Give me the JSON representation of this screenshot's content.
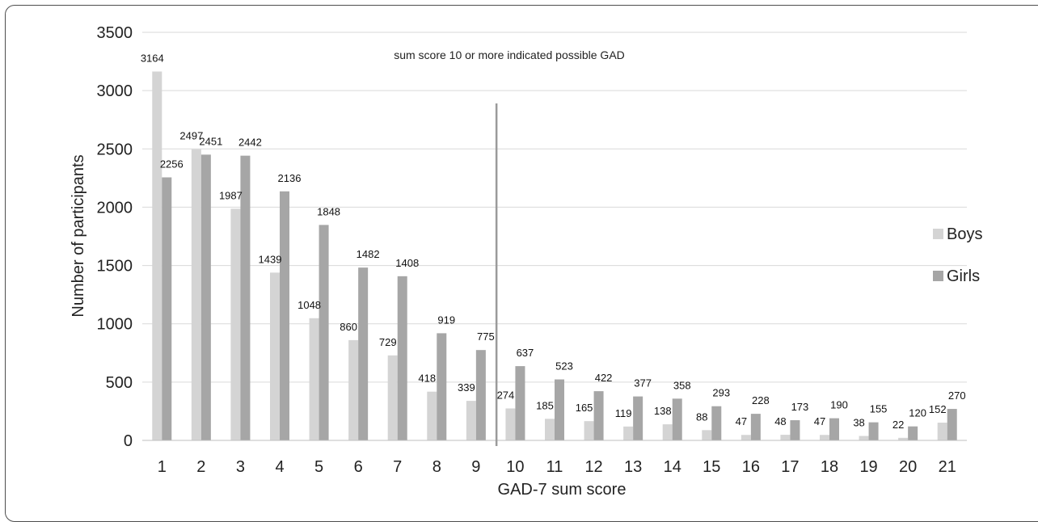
{
  "chart_data": {
    "type": "bar",
    "xlabel": "GAD-7 sum score",
    "ylabel": "Number of participants",
    "categories": [
      "1",
      "2",
      "3",
      "4",
      "5",
      "6",
      "7",
      "8",
      "9",
      "10",
      "11",
      "12",
      "13",
      "14",
      "15",
      "16",
      "17",
      "18",
      "19",
      "20",
      "21"
    ],
    "series": [
      {
        "name": "Boys",
        "color": "#d4d4d4",
        "values": [
          3164,
          2497,
          1987,
          1439,
          1048,
          860,
          729,
          418,
          339,
          274,
          185,
          165,
          119,
          138,
          88,
          47,
          48,
          47,
          38,
          22,
          152
        ]
      },
      {
        "name": "Girls",
        "color": "#a6a6a6",
        "values": [
          2256,
          2451,
          2442,
          2136,
          1848,
          1482,
          1408,
          919,
          775,
          637,
          523,
          422,
          377,
          358,
          293,
          228,
          173,
          190,
          155,
          120,
          270
        ]
      }
    ],
    "ylim": [
      0,
      3500
    ],
    "yticks": [
      0,
      500,
      1000,
      1500,
      2000,
      2500,
      3000,
      3500
    ],
    "grid": true,
    "legend_position": "right",
    "annotation": "sum score 10 or more indicated possible GAD",
    "reference_line_between": [
      "9",
      "10"
    ]
  }
}
